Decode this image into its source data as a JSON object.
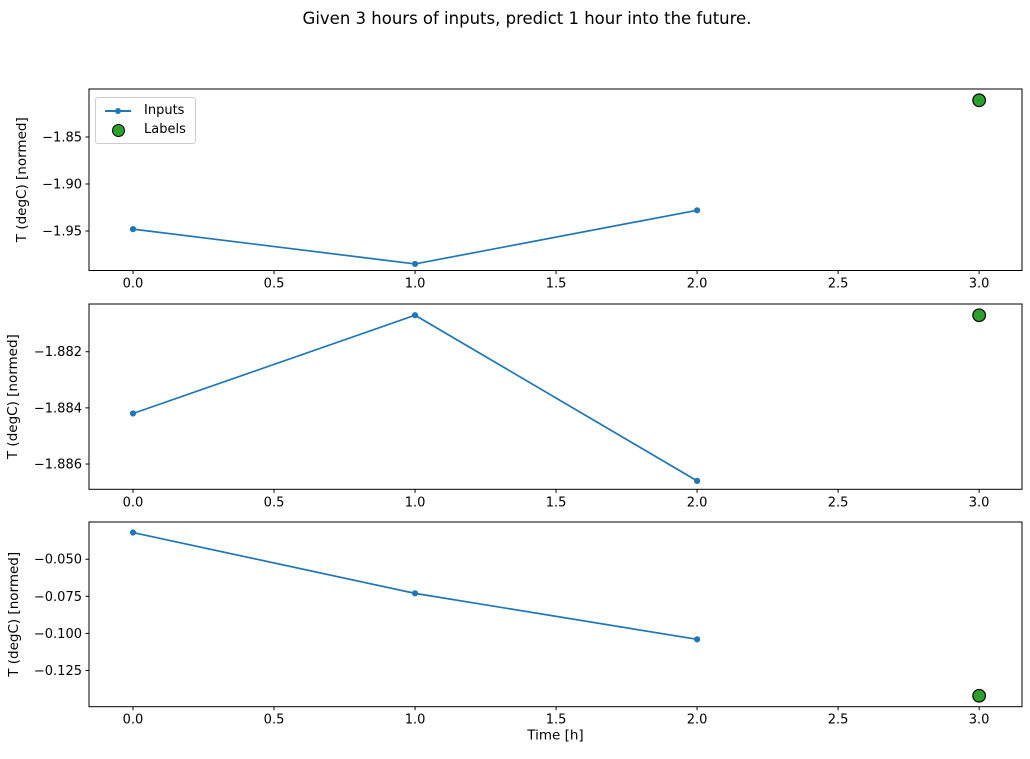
{
  "title": "Given 3 hours of inputs, predict 1 hour into the future.",
  "legend": {
    "inputs_label": "Inputs",
    "labels_label": "Labels"
  },
  "icons": {
    "inputs": "line-with-dot-marker",
    "labels": "filled-circle-marker"
  },
  "colors": {
    "inputs_line": "#1f77b4",
    "labels_fill": "#2ca02c",
    "labels_edge": "#000000",
    "axis": "#000000",
    "background": "#ffffff"
  },
  "chart_data": {
    "type": "line",
    "title": "Given 3 hours of inputs, predict 1 hour into the future.",
    "xlabel": "Time [h]",
    "xlim": [
      -0.156,
      3.152
    ],
    "xticks": {
      "values": [
        0,
        0.5,
        1,
        1.5,
        2,
        2.5,
        3
      ],
      "labels": [
        "0.0",
        "0.5",
        "1.0",
        "1.5",
        "2.0",
        "2.5",
        "3.0"
      ]
    },
    "legend_entries": [
      "Inputs",
      "Labels"
    ],
    "legend_position": "upper left of first subplot",
    "grid": false,
    "subplots": [
      {
        "ylabel": "T (degC) [normed]",
        "ylim": [
          -1.992,
          -1.799
        ],
        "yticks": {
          "values": [
            -1.85,
            -1.9,
            -1.95
          ],
          "labels": [
            "−1.85",
            "−1.90",
            "−1.95"
          ]
        },
        "series": [
          {
            "name": "Inputs",
            "type": "line+marker",
            "x": [
              0,
              1,
              2
            ],
            "y": [
              -1.948,
              -1.985,
              -1.928
            ]
          },
          {
            "name": "Labels",
            "type": "scatter",
            "x": [
              3
            ],
            "y": [
              -1.811
            ]
          }
        ]
      },
      {
        "ylabel": "T (degC) [normed]",
        "ylim": [
          -1.8869,
          -1.8803
        ],
        "yticks": {
          "values": [
            -1.882,
            -1.884,
            -1.886
          ],
          "labels": [
            "−1.882",
            "−1.884",
            "−1.886"
          ]
        },
        "series": [
          {
            "name": "Inputs",
            "type": "line+marker",
            "x": [
              0,
              1,
              2
            ],
            "y": [
              -1.8842,
              -1.8807,
              -1.8866
            ]
          },
          {
            "name": "Labels",
            "type": "scatter",
            "x": [
              3
            ],
            "y": [
              -1.8807
            ]
          }
        ]
      },
      {
        "ylabel": "T (degC) [normed]",
        "ylim": [
          -0.1494,
          -0.0249
        ],
        "yticks": {
          "values": [
            -0.05,
            -0.075,
            -0.1,
            -0.125
          ],
          "labels": [
            "−0.050",
            "−0.075",
            "−0.100",
            "−0.125"
          ]
        },
        "series": [
          {
            "name": "Inputs",
            "type": "line+marker",
            "x": [
              0,
              1,
              2
            ],
            "y": [
              -0.032,
              -0.073,
              -0.104
            ]
          },
          {
            "name": "Labels",
            "type": "scatter",
            "x": [
              3
            ],
            "y": [
              -0.142
            ]
          }
        ]
      }
    ]
  }
}
